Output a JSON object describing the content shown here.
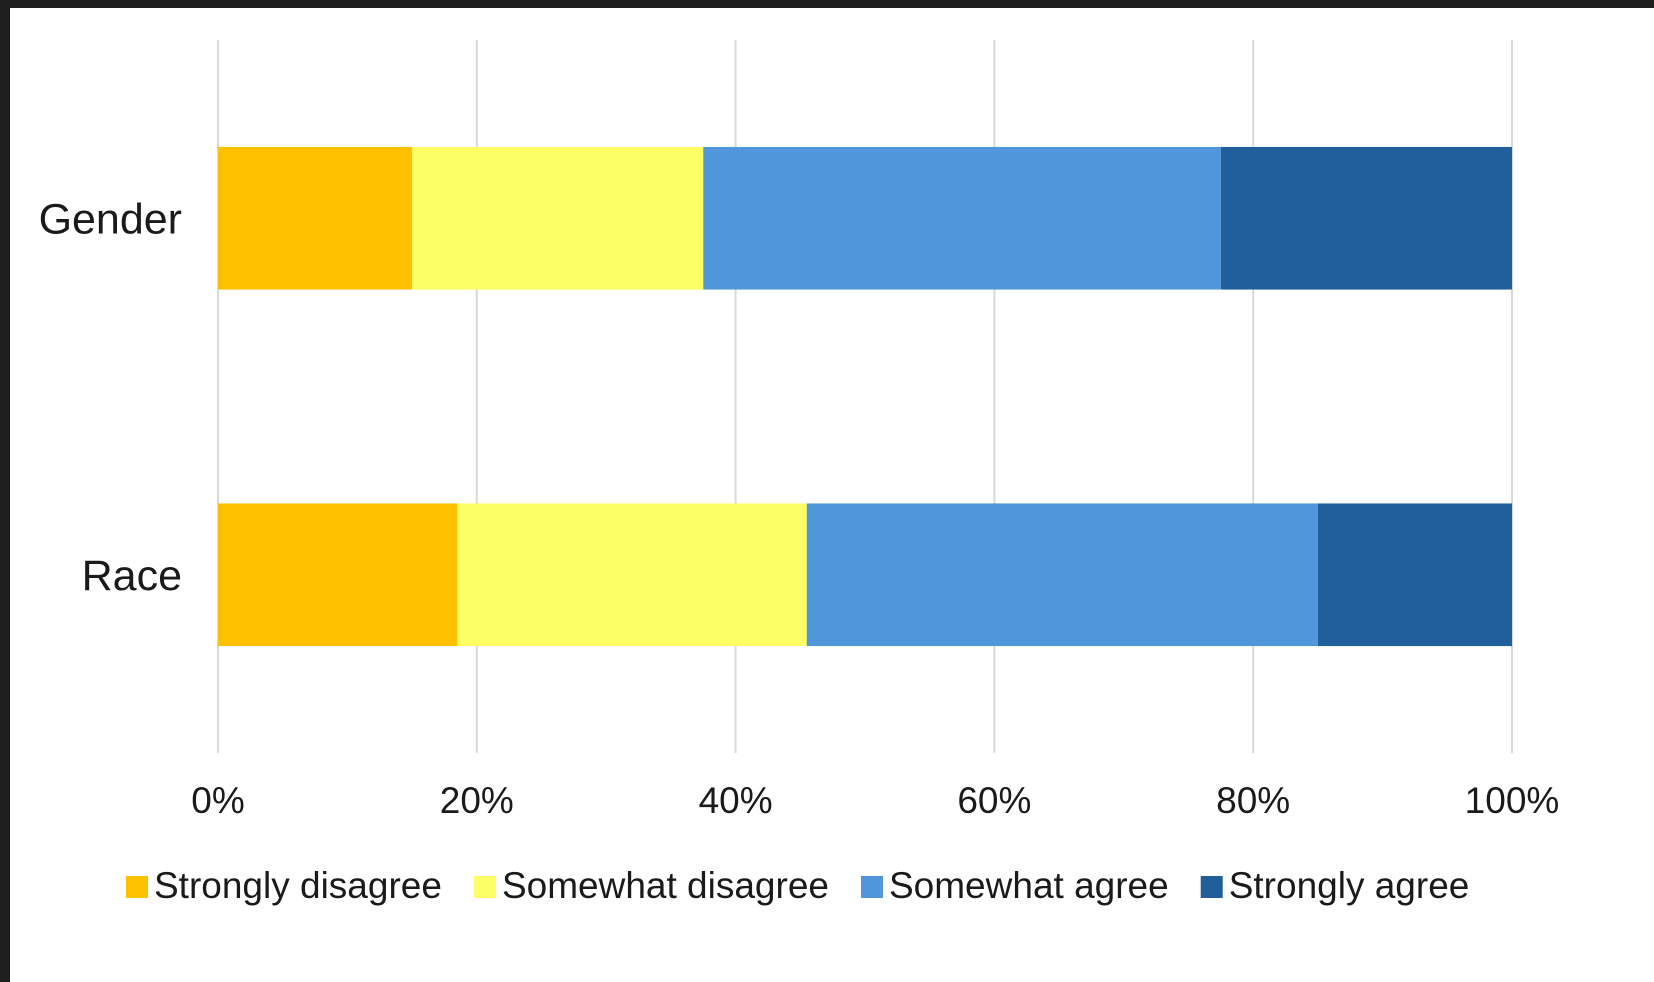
{
  "chart_data": {
    "type": "bar",
    "orientation": "horizontal",
    "stacked": true,
    "stack_mode": "percent",
    "categories": [
      "Gender",
      "Race"
    ],
    "series": [
      {
        "name": "Strongly disagree",
        "color": "#FFC000",
        "values": [
          15,
          18.5
        ]
      },
      {
        "name": "Somewhat disagree",
        "color": "#FFFF66",
        "values": [
          22.5,
          27
        ]
      },
      {
        "name": "Somewhat agree",
        "color": "#5096DA",
        "values": [
          40,
          39.5
        ]
      },
      {
        "name": "Strongly agree",
        "color": "#215F9A",
        "values": [
          22.5,
          15
        ]
      }
    ],
    "x_ticks": [
      "0%",
      "20%",
      "40%",
      "60%",
      "80%",
      "100%"
    ],
    "xlim": [
      0,
      100
    ],
    "grid": "vertical",
    "legend": "bottom",
    "title": "",
    "xlabel": "",
    "ylabel": ""
  }
}
